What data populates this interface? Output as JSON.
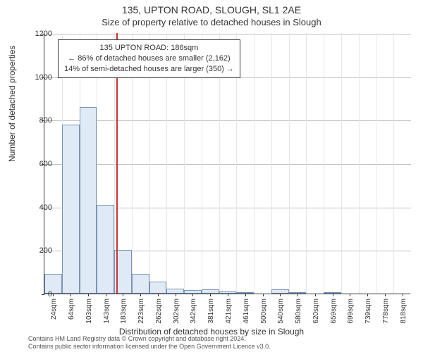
{
  "titles": {
    "main": "135, UPTON ROAD, SLOUGH, SL1 2AE",
    "sub": "Size of property relative to detached houses in Slough"
  },
  "axes": {
    "y_title": "Number of detached properties",
    "x_title": "Distribution of detached houses by size in Slough",
    "ylim": [
      0,
      1200
    ],
    "ytick_step": 200,
    "yticks": [
      0,
      200,
      400,
      600,
      800,
      1000,
      1200
    ],
    "xticks": [
      "24sqm",
      "64sqm",
      "103sqm",
      "143sqm",
      "183sqm",
      "223sqm",
      "262sqm",
      "302sqm",
      "342sqm",
      "381sqm",
      "421sqm",
      "461sqm",
      "500sqm",
      "540sqm",
      "580sqm",
      "620sqm",
      "659sqm",
      "699sqm",
      "739sqm",
      "778sqm",
      "818sqm"
    ],
    "grid_color_h": "#bfbfbf",
    "grid_color_v": "#e6e6e6",
    "axis_color": "#333333",
    "label_fontsize": 11,
    "title_fontsize": 12
  },
  "chart": {
    "type": "histogram",
    "background_color": "#ffffff",
    "bar_fill": "#e0eaf6",
    "bar_border": "#7b94b5",
    "bar_width_ratio": 1.0,
    "values": [
      90,
      780,
      860,
      410,
      200,
      90,
      55,
      22,
      15,
      18,
      10,
      5,
      0,
      20,
      7,
      0,
      8,
      0,
      0,
      0,
      0
    ],
    "marker": {
      "position_index": 4.1,
      "color": "#cc3333",
      "width": 2
    }
  },
  "annotation": {
    "lines": [
      "135 UPTON ROAD: 186sqm",
      "← 86% of detached houses are smaller (2,162)",
      "14% of semi-detached houses are larger (350) →"
    ],
    "border_color": "#333333",
    "background": "#ffffff",
    "fontsize": 11
  },
  "footer": {
    "line1": "Contains HM Land Registry data © Crown copyright and database right 2024.",
    "line2": "Contains public sector information licensed under the Open Government Licence v3.0."
  }
}
